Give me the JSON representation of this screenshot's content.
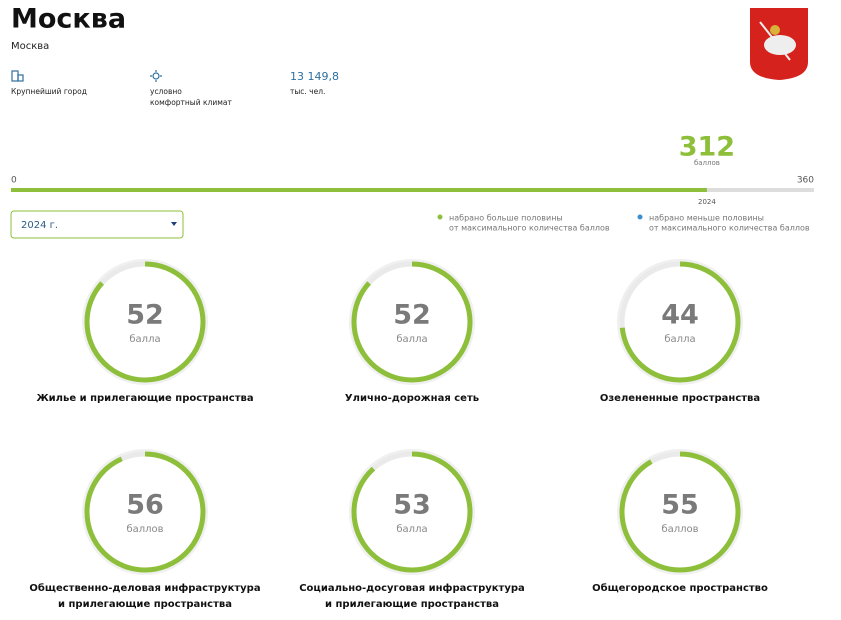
{
  "header": {
    "title": "Москва",
    "subtitle": "Москва"
  },
  "facts": [
    {
      "lines": [
        "Крупнейший город"
      ]
    },
    {
      "lines": [
        "условно",
        "комфортный климат"
      ]
    },
    {
      "value": "13 149,8",
      "lines": [
        "тыс. чел."
      ]
    }
  ],
  "total": {
    "score": 312,
    "unit": "баллов",
    "min": 0,
    "max": 360,
    "year": "2024"
  },
  "select": {
    "value": "2024 г."
  },
  "legend": [
    {
      "lines": [
        "набрано больше половины",
        "от максимального количества баллов"
      ],
      "color": "#8dbf3b"
    },
    {
      "lines": [
        "набрано меньше половины",
        "от максимального количества баллов"
      ],
      "color": "#3b8fcf"
    }
  ],
  "categories": [
    {
      "score": 52,
      "unit": "балла",
      "name": [
        "Жилье и прилегающие пространства"
      ]
    },
    {
      "score": 52,
      "unit": "балла",
      "name": [
        "Улично-дорожная сеть"
      ]
    },
    {
      "score": 44,
      "unit": "балла",
      "name": [
        "Озелененные пространства"
      ]
    },
    {
      "score": 56,
      "unit": "баллов",
      "name": [
        "Общественно-деловая инфраструктура",
        "и прилегающие пространства"
      ]
    },
    {
      "score": 53,
      "unit": "балла",
      "name": [
        "Социально-досуговая инфраструктура",
        "и прилегающие пространства"
      ]
    },
    {
      "score": 55,
      "unit": "баллов",
      "name": [
        "Общегородское пространство"
      ]
    }
  ]
}
